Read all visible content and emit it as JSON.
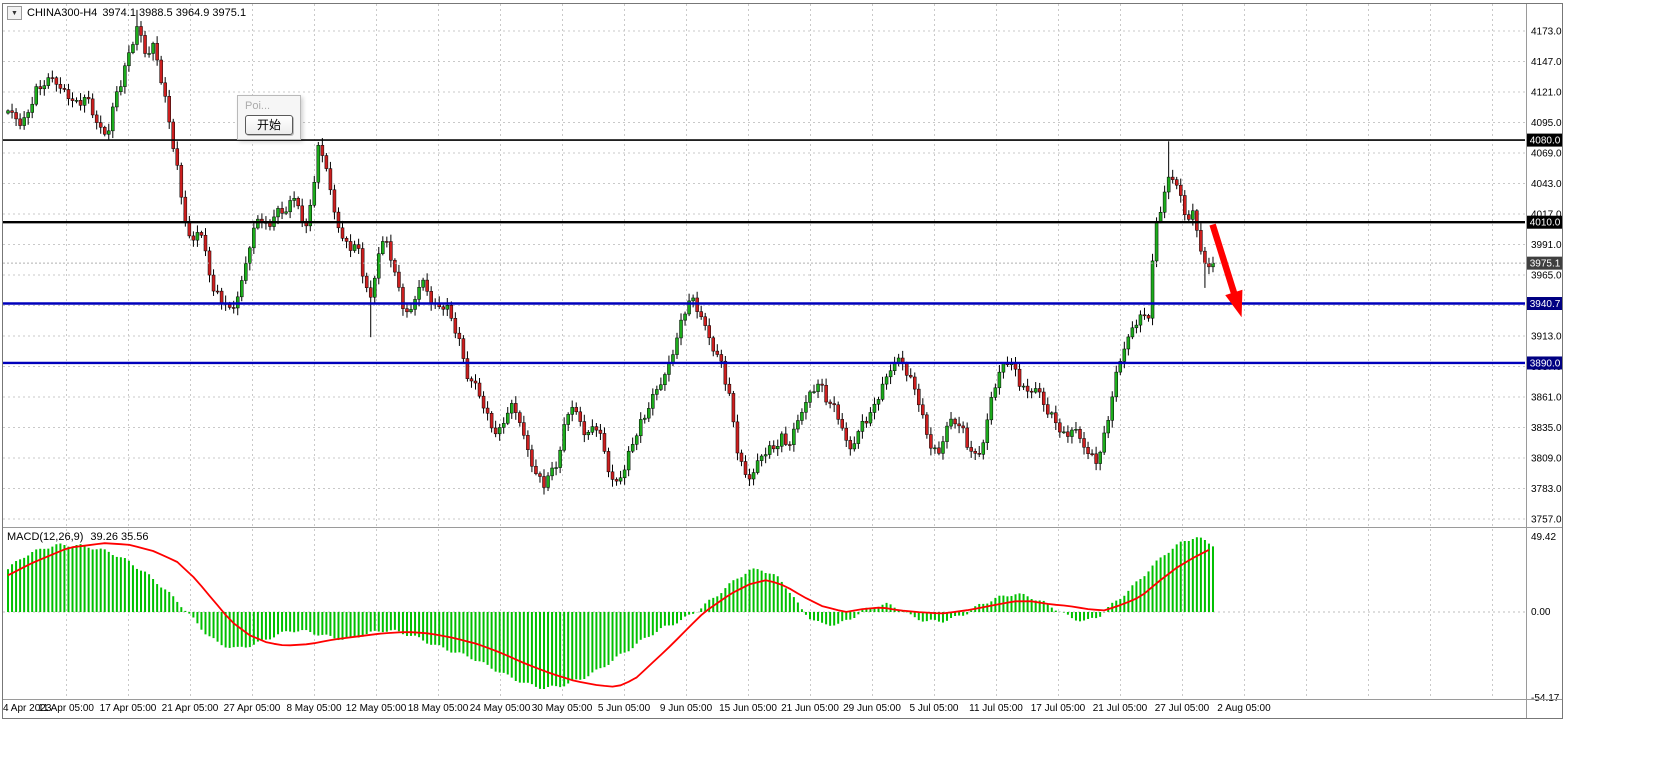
{
  "header": {
    "dropdown_icon": "▼",
    "symbol_timeframe": "CHINA300-H4",
    "quote": "3974.1 3988.5 3964.9 3975.1"
  },
  "popup": {
    "disabled_item": "Poi...",
    "button_label": "开始"
  },
  "price_scale": {
    "tick_labels": [
      "4173.0",
      "4147.0",
      "4121.0",
      "4095.0",
      "4069.0",
      "4043.0",
      "4017.0",
      "3991.0",
      "3965.0",
      "3939.0",
      "3913.0",
      "3887.0",
      "3861.0",
      "3835.0",
      "3809.0",
      "3783.0",
      "3757.0"
    ]
  },
  "time_scale": {
    "labels": [
      "4 Apr 2023",
      "11 Apr 05:00",
      "17 Apr 05:00",
      "21 Apr 05:00",
      "27 Apr 05:00",
      "8 May 05:00",
      "12 May 05:00",
      "18 May 05:00",
      "24 May 05:00",
      "30 May 05:00",
      "5 Jun 05:00",
      "9 Jun 05:00",
      "15 Jun 05:00",
      "21 Jun 05:00",
      "29 Jun 05:00",
      "5 Jul 05:00",
      "11 Jul 05:00",
      "17 Jul 05:00",
      "21 Jul 05:00",
      "27 Jul 05:00",
      "2 Aug 05:00"
    ]
  },
  "level_lines": [
    {
      "label": "4080.0",
      "value": 4080.0,
      "color": "#000000",
      "width": 1.6,
      "badge": "#000000"
    },
    {
      "label": "4010.0",
      "value": 4010.0,
      "color": "#000000",
      "width": 2.4,
      "badge": "#000000"
    },
    {
      "label": "3940.7",
      "value": 3940.7,
      "color": "#0000bb",
      "width": 2.4,
      "badge": "#000082"
    },
    {
      "label": "3890.0",
      "value": 3890.0,
      "color": "#0000bb",
      "width": 2.4,
      "badge": "#000082"
    }
  ],
  "current_price": {
    "value": 3975.1,
    "label": "3975.1",
    "line_color": "#b0b0b0",
    "badge": "#3f3f3f"
  },
  "macd_panel": {
    "label": "MACD(12,26,9)",
    "values": "39.26 35.56",
    "axis_labels": {
      "top": "49.42",
      "zero": "0.00",
      "bottom": "-54.17"
    }
  },
  "annotation_arrow": {
    "color": "#ff0000",
    "from": {
      "frac": 0.998,
      "price": 4008
    },
    "to": {
      "frac": 1.022,
      "price": 3929
    }
  },
  "colors": {
    "bull": "#1cac1c",
    "bear": "#cc1f1f",
    "wick": "#000000",
    "grid": "#c9c9c9",
    "macd_histogram": "#00c000",
    "macd_signal": "#ff0000",
    "frame": "#777777",
    "separator": "#9a9a9a"
  },
  "chart_data": [
    {
      "type": "candlestick",
      "title": "CHINA300-H4",
      "open": 3974.1,
      "high": 3988.5,
      "low": 3964.9,
      "close": 3975.1,
      "ylim": [
        3757,
        4173
      ],
      "tick_step": 26,
      "num_candles": 300,
      "price_path": [
        [
          0.0,
          4105
        ],
        [
          0.012,
          4090
        ],
        [
          0.024,
          4125
        ],
        [
          0.036,
          4135
        ],
        [
          0.045,
          4120
        ],
        [
          0.057,
          4110
        ],
        [
          0.065,
          4120
        ],
        [
          0.074,
          4095
        ],
        [
          0.082,
          4080
        ],
        [
          0.088,
          4110
        ],
        [
          0.094,
          4130
        ],
        [
          0.103,
          4165
        ],
        [
          0.108,
          4180
        ],
        [
          0.115,
          4150
        ],
        [
          0.121,
          4160
        ],
        [
          0.127,
          4130
        ],
        [
          0.134,
          4095
        ],
        [
          0.14,
          4060
        ],
        [
          0.146,
          4020
        ],
        [
          0.152,
          3990
        ],
        [
          0.159,
          4005
        ],
        [
          0.165,
          3975
        ],
        [
          0.171,
          3950
        ],
        [
          0.179,
          3945
        ],
        [
          0.185,
          3935
        ],
        [
          0.192,
          3950
        ],
        [
          0.198,
          3975
        ],
        [
          0.203,
          4000
        ],
        [
          0.21,
          4015
        ],
        [
          0.217,
          4005
        ],
        [
          0.222,
          4025
        ],
        [
          0.229,
          4015
        ],
        [
          0.235,
          4030
        ],
        [
          0.242,
          4020
        ],
        [
          0.247,
          4000
        ],
        [
          0.253,
          4040
        ],
        [
          0.258,
          4078
        ],
        [
          0.264,
          4060
        ],
        [
          0.27,
          4020
        ],
        [
          0.276,
          3998
        ],
        [
          0.283,
          3985
        ],
        [
          0.289,
          3995
        ],
        [
          0.294,
          3970
        ],
        [
          0.301,
          3945
        ],
        [
          0.308,
          3985
        ],
        [
          0.313,
          3995
        ],
        [
          0.32,
          3970
        ],
        [
          0.326,
          3945
        ],
        [
          0.333,
          3930
        ],
        [
          0.338,
          3950
        ],
        [
          0.345,
          3960
        ],
        [
          0.351,
          3940
        ],
        [
          0.357,
          3935
        ],
        [
          0.363,
          3940
        ],
        [
          0.37,
          3925
        ],
        [
          0.376,
          3905
        ],
        [
          0.382,
          3875
        ],
        [
          0.388,
          3870
        ],
        [
          0.395,
          3850
        ],
        [
          0.4,
          3838
        ],
        [
          0.407,
          3830
        ],
        [
          0.413,
          3848
        ],
        [
          0.419,
          3855
        ],
        [
          0.425,
          3838
        ],
        [
          0.432,
          3810
        ],
        [
          0.438,
          3795
        ],
        [
          0.444,
          3788
        ],
        [
          0.45,
          3798
        ],
        [
          0.457,
          3808
        ],
        [
          0.462,
          3838
        ],
        [
          0.468,
          3852
        ],
        [
          0.475,
          3838
        ],
        [
          0.481,
          3828
        ],
        [
          0.487,
          3842
        ],
        [
          0.493,
          3825
        ],
        [
          0.5,
          3790
        ],
        [
          0.506,
          3785
        ],
        [
          0.512,
          3800
        ],
        [
          0.518,
          3822
        ],
        [
          0.524,
          3838
        ],
        [
          0.531,
          3852
        ],
        [
          0.537,
          3865
        ],
        [
          0.543,
          3872
        ],
        [
          0.549,
          3888
        ],
        [
          0.556,
          3915
        ],
        [
          0.562,
          3938
        ],
        [
          0.567,
          3948
        ],
        [
          0.574,
          3932
        ],
        [
          0.581,
          3912
        ],
        [
          0.586,
          3898
        ],
        [
          0.592,
          3890
        ],
        [
          0.599,
          3862
        ],
        [
          0.605,
          3820
        ],
        [
          0.611,
          3795
        ],
        [
          0.617,
          3790
        ],
        [
          0.624,
          3808
        ],
        [
          0.63,
          3815
        ],
        [
          0.636,
          3820
        ],
        [
          0.642,
          3828
        ],
        [
          0.648,
          3820
        ],
        [
          0.655,
          3838
        ],
        [
          0.661,
          3852
        ],
        [
          0.667,
          3865
        ],
        [
          0.673,
          3875
        ],
        [
          0.68,
          3860
        ],
        [
          0.686,
          3852
        ],
        [
          0.691,
          3838
        ],
        [
          0.698,
          3812
        ],
        [
          0.705,
          3828
        ],
        [
          0.71,
          3842
        ],
        [
          0.716,
          3848
        ],
        [
          0.723,
          3865
        ],
        [
          0.73,
          3878
        ],
        [
          0.735,
          3888
        ],
        [
          0.741,
          3892
        ],
        [
          0.748,
          3878
        ],
        [
          0.754,
          3868
        ],
        [
          0.76,
          3840
        ],
        [
          0.766,
          3818
        ],
        [
          0.773,
          3810
        ],
        [
          0.779,
          3835
        ],
        [
          0.785,
          3842
        ],
        [
          0.791,
          3838
        ],
        [
          0.797,
          3820
        ],
        [
          0.804,
          3808
        ],
        [
          0.81,
          3822
        ],
        [
          0.816,
          3858
        ],
        [
          0.822,
          3880
        ],
        [
          0.829,
          3895
        ],
        [
          0.835,
          3888
        ],
        [
          0.84,
          3872
        ],
        [
          0.847,
          3862
        ],
        [
          0.854,
          3868
        ],
        [
          0.859,
          3855
        ],
        [
          0.865,
          3848
        ],
        [
          0.872,
          3838
        ],
        [
          0.878,
          3825
        ],
        [
          0.884,
          3835
        ],
        [
          0.89,
          3822
        ],
        [
          0.897,
          3812
        ],
        [
          0.903,
          3808
        ],
        [
          0.909,
          3825
        ],
        [
          0.915,
          3855
        ],
        [
          0.921,
          3885
        ],
        [
          0.928,
          3905
        ],
        [
          0.934,
          3920
        ],
        [
          0.94,
          3932
        ],
        [
          0.946,
          3928
        ],
        [
          0.952,
          4005
        ],
        [
          0.959,
          4030
        ],
        [
          0.964,
          4048
        ],
        [
          0.971,
          4040
        ],
        [
          0.977,
          4015
        ],
        [
          0.983,
          4020
        ],
        [
          0.989,
          3995
        ],
        [
          0.994,
          3968
        ],
        [
          1.0,
          3975
        ]
      ],
      "wick_spikes": [
        {
          "frac": 0.108,
          "high": 4191
        },
        {
          "frac": 0.964,
          "high": 4079
        },
        {
          "frac": 0.301,
          "low": 3912
        },
        {
          "frac": 0.903,
          "low": 3799
        },
        {
          "frac": 0.994,
          "low": 3954
        }
      ]
    },
    {
      "type": "bar",
      "name": "MACD(12,26,9) histogram",
      "ylim": [
        -54.17,
        49.42
      ],
      "anchors": [
        [
          0.0,
          28
        ],
        [
          0.012,
          36
        ],
        [
          0.03,
          42
        ],
        [
          0.045,
          44
        ],
        [
          0.065,
          43
        ],
        [
          0.085,
          39
        ],
        [
          0.1,
          33
        ],
        [
          0.115,
          25
        ],
        [
          0.13,
          15
        ],
        [
          0.143,
          5
        ],
        [
          0.152,
          -3
        ],
        [
          0.163,
          -13
        ],
        [
          0.175,
          -21
        ],
        [
          0.19,
          -24
        ],
        [
          0.205,
          -21
        ],
        [
          0.22,
          -16
        ],
        [
          0.235,
          -12
        ],
        [
          0.25,
          -13
        ],
        [
          0.265,
          -16
        ],
        [
          0.28,
          -18
        ],
        [
          0.295,
          -15
        ],
        [
          0.31,
          -12
        ],
        [
          0.325,
          -13
        ],
        [
          0.34,
          -17
        ],
        [
          0.355,
          -22
        ],
        [
          0.37,
          -26
        ],
        [
          0.385,
          -30
        ],
        [
          0.4,
          -36
        ],
        [
          0.415,
          -42
        ],
        [
          0.43,
          -47
        ],
        [
          0.446,
          -50
        ],
        [
          0.46,
          -48
        ],
        [
          0.475,
          -44
        ],
        [
          0.49,
          -38
        ],
        [
          0.505,
          -30
        ],
        [
          0.52,
          -22
        ],
        [
          0.533,
          -15
        ],
        [
          0.545,
          -10
        ],
        [
          0.56,
          -5
        ],
        [
          0.574,
          2
        ],
        [
          0.59,
          12
        ],
        [
          0.605,
          22
        ],
        [
          0.615,
          27
        ],
        [
          0.625,
          28
        ],
        [
          0.64,
          22
        ],
        [
          0.65,
          12
        ],
        [
          0.658,
          2
        ],
        [
          0.666,
          -4
        ],
        [
          0.675,
          -8
        ],
        [
          0.69,
          -8
        ],
        [
          0.7,
          -4
        ],
        [
          0.71,
          1
        ],
        [
          0.72,
          4
        ],
        [
          0.73,
          5
        ],
        [
          0.74,
          2
        ],
        [
          0.75,
          -3
        ],
        [
          0.762,
          -6
        ],
        [
          0.775,
          -6
        ],
        [
          0.785,
          -4
        ],
        [
          0.795,
          -1
        ],
        [
          0.805,
          4
        ],
        [
          0.82,
          9
        ],
        [
          0.835,
          12
        ],
        [
          0.848,
          10
        ],
        [
          0.86,
          6
        ],
        [
          0.872,
          1
        ],
        [
          0.882,
          -4
        ],
        [
          0.895,
          -6
        ],
        [
          0.905,
          -3
        ],
        [
          0.915,
          4
        ],
        [
          0.93,
          14
        ],
        [
          0.945,
          26
        ],
        [
          0.96,
          38
        ],
        [
          0.975,
          46
        ],
        [
          0.985,
          49
        ],
        [
          0.995,
          46
        ],
        [
          1.0,
          44
        ]
      ]
    },
    {
      "type": "line",
      "name": "MACD signal",
      "anchors": [
        [
          0.0,
          24
        ],
        [
          0.02,
          32
        ],
        [
          0.05,
          42
        ],
        [
          0.08,
          45
        ],
        [
          0.1,
          44
        ],
        [
          0.12,
          40
        ],
        [
          0.14,
          33
        ],
        [
          0.155,
          22
        ],
        [
          0.17,
          8
        ],
        [
          0.185,
          -6
        ],
        [
          0.2,
          -15
        ],
        [
          0.215,
          -20
        ],
        [
          0.23,
          -22
        ],
        [
          0.25,
          -21
        ],
        [
          0.27,
          -18
        ],
        [
          0.29,
          -16
        ],
        [
          0.31,
          -14
        ],
        [
          0.33,
          -13
        ],
        [
          0.35,
          -14
        ],
        [
          0.37,
          -17
        ],
        [
          0.39,
          -21
        ],
        [
          0.41,
          -27
        ],
        [
          0.43,
          -34
        ],
        [
          0.45,
          -40
        ],
        [
          0.47,
          -45
        ],
        [
          0.49,
          -48
        ],
        [
          0.505,
          -49
        ],
        [
          0.52,
          -44
        ],
        [
          0.535,
          -33
        ],
        [
          0.55,
          -22
        ],
        [
          0.565,
          -10
        ],
        [
          0.578,
          0
        ],
        [
          0.6,
          12
        ],
        [
          0.615,
          18
        ],
        [
          0.63,
          21
        ],
        [
          0.645,
          17
        ],
        [
          0.66,
          10
        ],
        [
          0.675,
          4
        ],
        [
          0.695,
          0
        ],
        [
          0.71,
          2
        ],
        [
          0.725,
          3
        ],
        [
          0.74,
          1
        ],
        [
          0.755,
          0
        ],
        [
          0.775,
          -1
        ],
        [
          0.795,
          1
        ],
        [
          0.815,
          4
        ],
        [
          0.835,
          7
        ],
        [
          0.85,
          7
        ],
        [
          0.865,
          5
        ],
        [
          0.88,
          4
        ],
        [
          0.895,
          2
        ],
        [
          0.91,
          1
        ],
        [
          0.925,
          5
        ],
        [
          0.94,
          10
        ],
        [
          0.955,
          20
        ],
        [
          0.97,
          29
        ],
        [
          0.985,
          36
        ],
        [
          1.0,
          42
        ]
      ]
    }
  ]
}
